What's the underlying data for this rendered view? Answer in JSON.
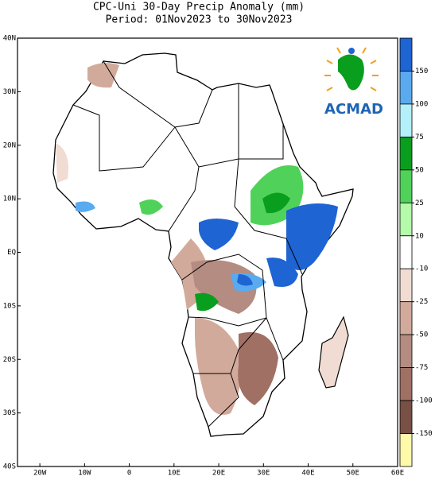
{
  "header": {
    "title": "CPC-Uni 30-Day Precip Anomaly (mm)",
    "subtitle": "Period: 01Nov2023 to 30Nov2023"
  },
  "map": {
    "xlim": [
      -25,
      60
    ],
    "ylim": [
      -40,
      40
    ],
    "lat_ticks": [
      {
        "value": 40,
        "label": "40N"
      },
      {
        "value": 30,
        "label": "30N"
      },
      {
        "value": 20,
        "label": "20N"
      },
      {
        "value": 10,
        "label": "10N"
      },
      {
        "value": 0,
        "label": "EQ"
      },
      {
        "value": -10,
        "label": "10S"
      },
      {
        "value": -20,
        "label": "20S"
      },
      {
        "value": -30,
        "label": "30S"
      },
      {
        "value": -40,
        "label": "40S"
      }
    ],
    "lon_ticks": [
      {
        "value": -20,
        "label": "20W"
      },
      {
        "value": -10,
        "label": "10W"
      },
      {
        "value": 0,
        "label": "0"
      },
      {
        "value": 10,
        "label": "10E"
      },
      {
        "value": 20,
        "label": "20E"
      },
      {
        "value": 30,
        "label": "30E"
      },
      {
        "value": 40,
        "label": "40E"
      },
      {
        "value": 50,
        "label": "50E"
      },
      {
        "value": 60,
        "label": "60E"
      }
    ]
  },
  "colorbar": {
    "levels": [
      150,
      100,
      75,
      50,
      25,
      10,
      -10,
      -25,
      -50,
      -75,
      -100,
      -150
    ],
    "colors": [
      "#1e64d2",
      "#5aaaf0",
      "#b4f0fa",
      "#0a9e1e",
      "#50d25a",
      "#b4faaa",
      "#ffffff",
      "#f0dcd2",
      "#d2aa9b",
      "#b48c82",
      "#a07064",
      "#785046",
      "#fffaaa"
    ]
  },
  "logo": {
    "text": "ACMAD"
  }
}
